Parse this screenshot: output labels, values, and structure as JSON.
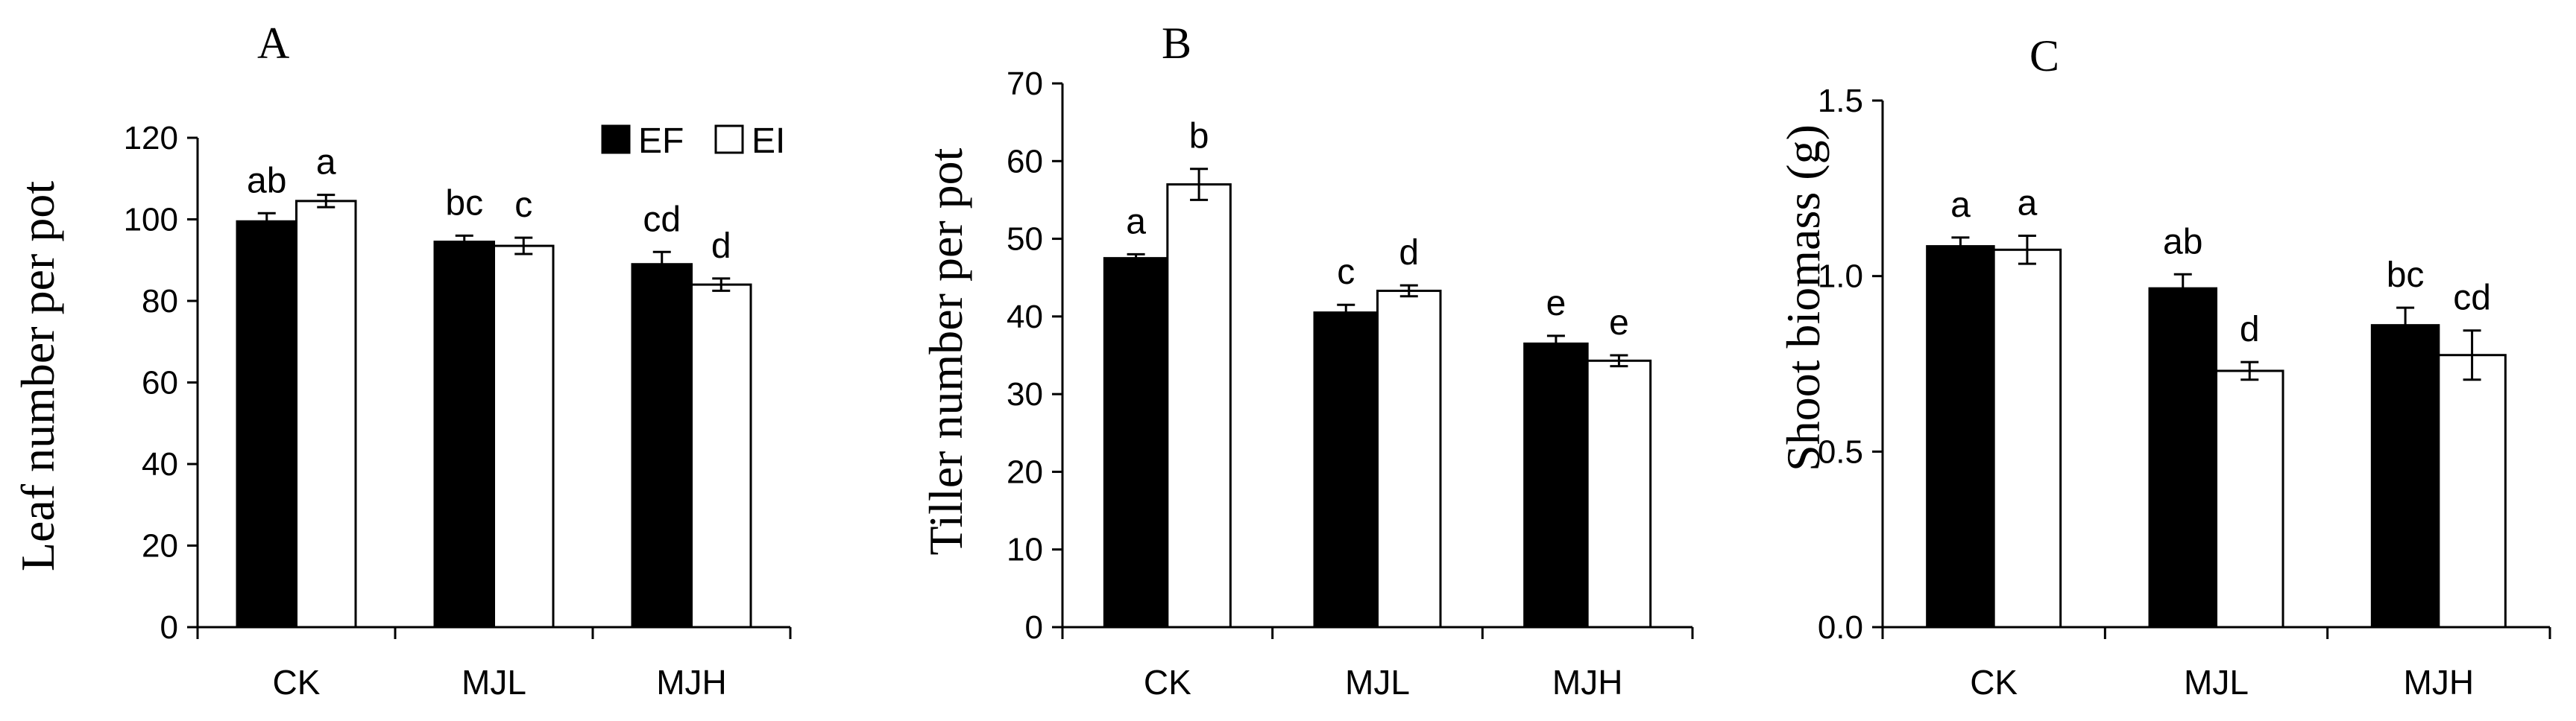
{
  "legend": [
    {
      "name": "EF",
      "color": "#000000"
    },
    {
      "name": "EI",
      "color": "#ffffff"
    }
  ],
  "chart_data": [
    {
      "type": "bar",
      "panel_label": "A",
      "title": "",
      "xlabel": "",
      "ylabel": "Leaf number per pot",
      "categories": [
        "CK",
        "MJL",
        "MJH"
      ],
      "ylim": [
        0,
        120
      ],
      "yticks": [
        "0",
        "20",
        "40",
        "60",
        "80",
        "100",
        "120"
      ],
      "series": [
        {
          "name": "EF",
          "values": [
            99.5,
            94.5,
            89
          ],
          "errors": [
            2,
            1.5,
            3
          ],
          "letters": [
            "ab",
            "bc",
            "cd"
          ]
        },
        {
          "name": "EI",
          "values": [
            104.5,
            93.5,
            84
          ],
          "errors": [
            1.5,
            2,
            1.5
          ],
          "letters": [
            "a",
            "c",
            "d"
          ]
        }
      ]
    },
    {
      "type": "bar",
      "panel_label": "B",
      "title": "",
      "xlabel": "",
      "ylabel": "Tiller number per pot",
      "categories": [
        "CK",
        "MJL",
        "MJH"
      ],
      "ylim": [
        0,
        70
      ],
      "yticks": [
        "0",
        "10",
        "20",
        "30",
        "40",
        "50",
        "60",
        "70"
      ],
      "series": [
        {
          "name": "EF",
          "values": [
            47.5,
            40.5,
            36.5
          ],
          "errors": [
            0.5,
            1,
            1
          ],
          "letters": [
            "a",
            "c",
            "e"
          ]
        },
        {
          "name": "EI",
          "values": [
            57,
            43.3,
            34.3
          ],
          "errors": [
            2,
            0.7,
            0.7
          ],
          "letters": [
            "b",
            "d",
            "e"
          ]
        }
      ]
    },
    {
      "type": "bar",
      "panel_label": "C",
      "title": "",
      "xlabel": "",
      "ylabel": "Shoot biomass (g)",
      "categories": [
        "CK",
        "MJL",
        "MJH"
      ],
      "ylim": [
        0,
        1.5
      ],
      "yticks": [
        "0.0",
        "0.5",
        "1.0",
        "1.5"
      ],
      "series": [
        {
          "name": "EF",
          "values": [
            1.085,
            0.965,
            0.86
          ],
          "errors": [
            0.025,
            0.04,
            0.05
          ],
          "letters": [
            "a",
            "ab",
            "bc"
          ]
        },
        {
          "name": "EI",
          "values": [
            1.075,
            0.73,
            0.775
          ],
          "errors": [
            0.04,
            0.025,
            0.07
          ],
          "letters": [
            "a",
            "d",
            "cd"
          ]
        }
      ]
    }
  ]
}
